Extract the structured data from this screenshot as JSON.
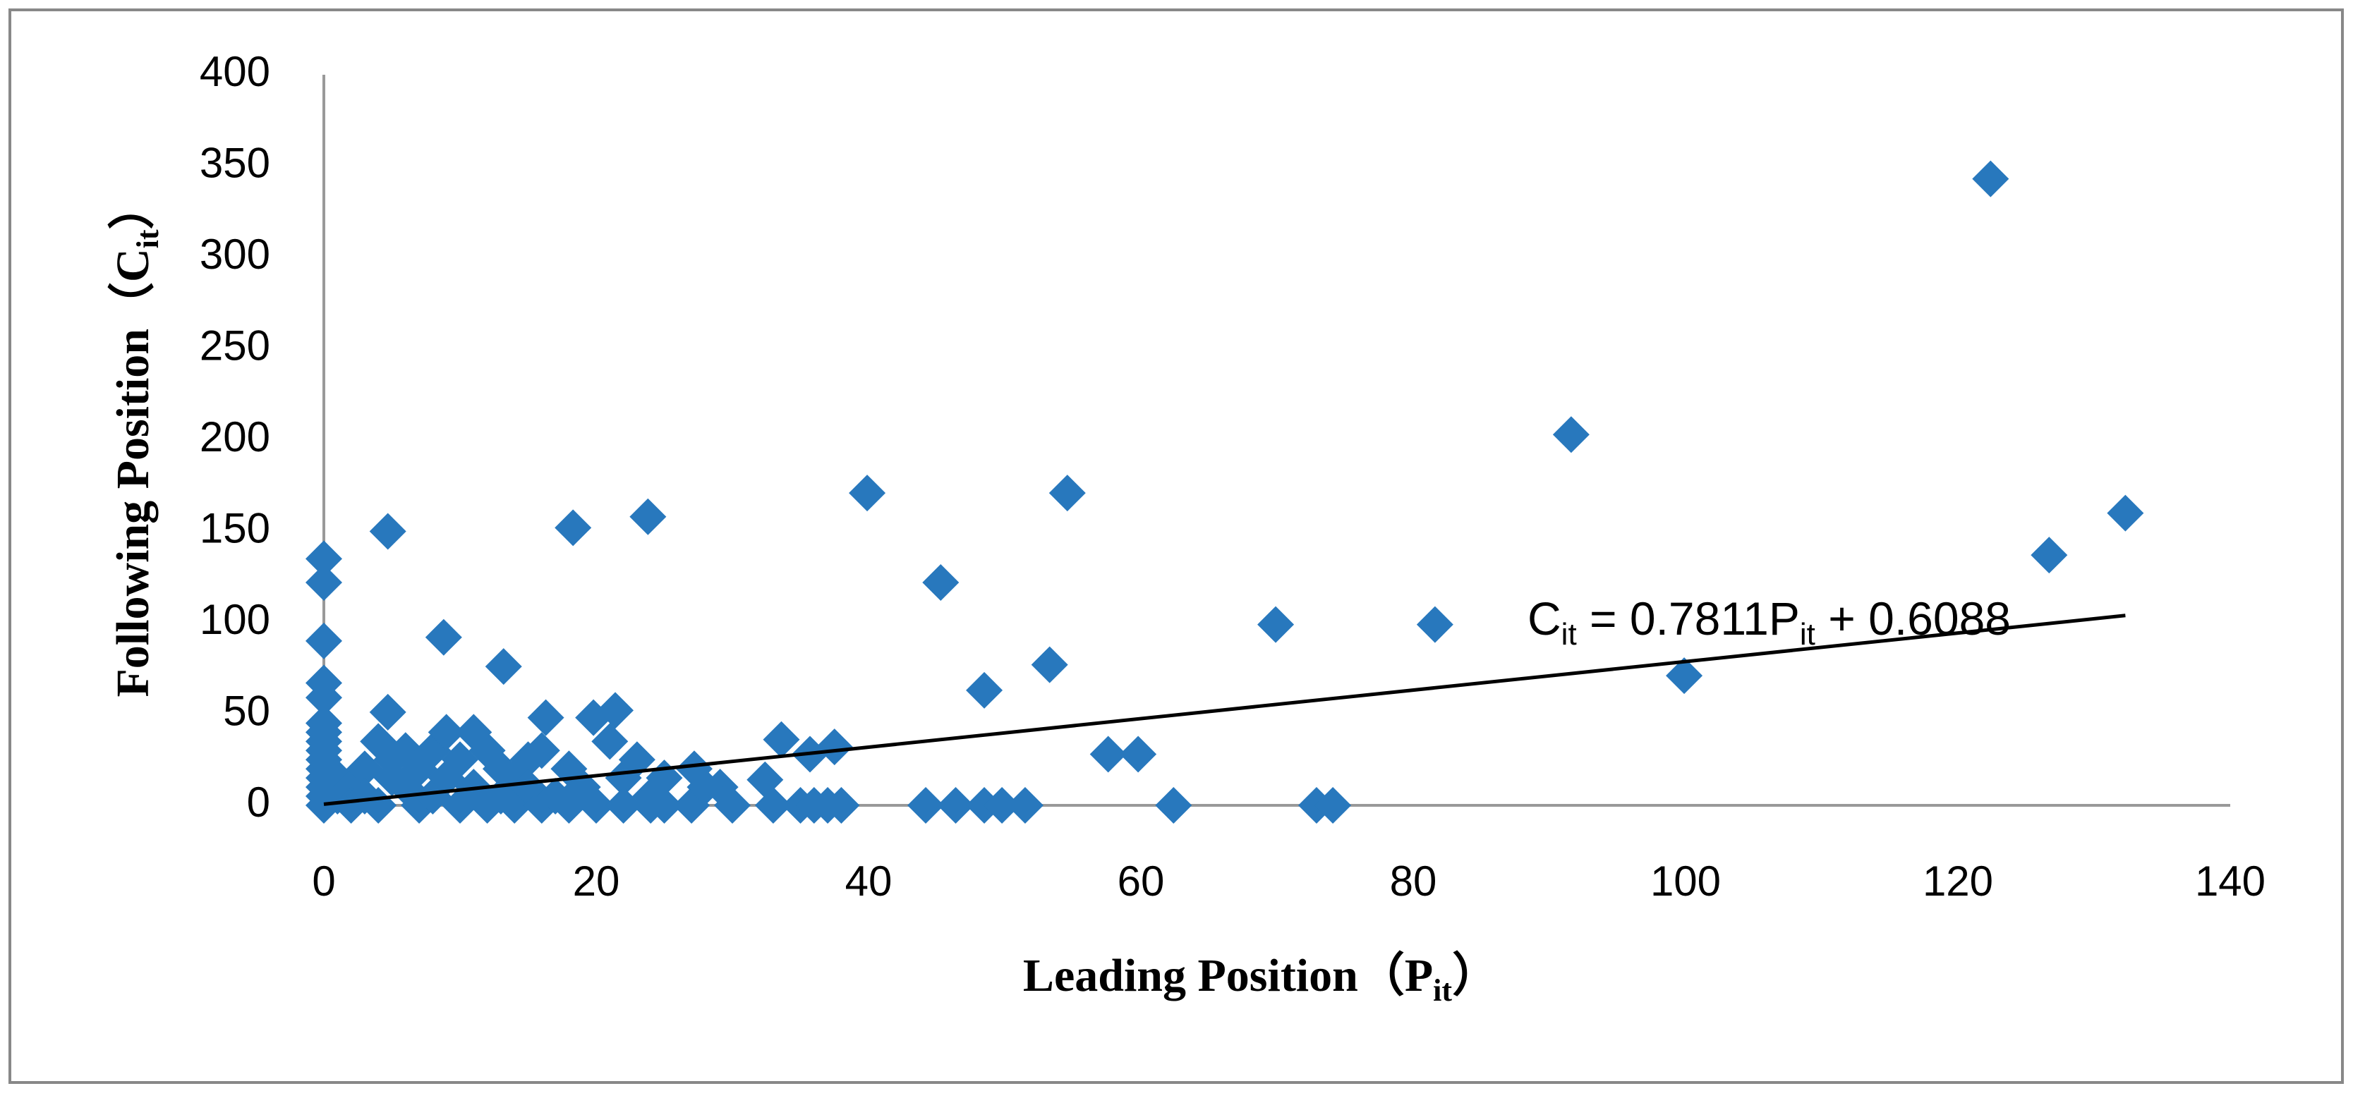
{
  "chart_data": {
    "type": "scatter",
    "x_label_parts": [
      "Leading Position（P",
      "it",
      "）"
    ],
    "y_label_parts": [
      "Following Position（C",
      "it",
      "）"
    ],
    "equation_parts": [
      "C",
      "it",
      " = 0.7811P",
      "it",
      " + 0.6088"
    ],
    "xlim": [
      0,
      140
    ],
    "xticks": [
      0,
      20,
      40,
      60,
      80,
      100,
      120,
      140
    ],
    "ylim": [
      0,
      400
    ],
    "yticks": [
      0,
      50,
      100,
      150,
      200,
      250,
      300,
      350,
      400
    ],
    "series": [
      {
        "color": "#2878bd",
        "x": [
          122.4,
          91.6,
          132.3,
          126.7,
          99.9,
          81.6,
          69.9,
          54.6,
          39.9,
          45.3,
          48.5,
          53.3,
          57.6,
          59.8,
          62.4,
          72.9,
          74.1,
          44.2,
          46.4,
          48.5,
          49.8,
          51.5,
          23.8,
          18.3,
          4.7,
          0,
          0,
          0,
          8.8,
          13.2,
          0,
          0,
          4.7,
          16.3,
          21.4,
          19.8,
          33.6,
          37.5,
          35.7,
          27.2,
          32.4,
          29.1,
          0,
          0,
          0,
          0,
          0,
          0,
          0,
          0,
          0,
          0,
          1,
          1,
          2,
          2,
          3,
          3,
          4,
          4,
          5,
          5,
          6,
          6,
          7,
          7,
          8,
          8,
          9,
          9,
          10,
          10,
          11,
          11,
          12,
          12,
          13,
          13,
          14,
          14,
          15,
          15,
          16,
          16,
          17,
          18,
          18,
          19,
          20,
          21,
          22,
          22,
          23,
          24,
          24,
          25,
          25,
          27,
          28,
          30,
          33,
          35,
          36,
          37,
          38
        ],
        "values": [
          343,
          203,
          160,
          137,
          71,
          99,
          99,
          171,
          171,
          122,
          63,
          77,
          28,
          28,
          0,
          0,
          0,
          0,
          0,
          0,
          0,
          0,
          158,
          152,
          150,
          135,
          122,
          90,
          92,
          76,
          67,
          59,
          51,
          48,
          52,
          48,
          36,
          32,
          28,
          20,
          14,
          10,
          0,
          5,
          10,
          15,
          20,
          25,
          30,
          35,
          40,
          45,
          5,
          15,
          10,
          0,
          20,
          5,
          35,
          0,
          15,
          25,
          10,
          30,
          0,
          20,
          5,
          30,
          40,
          15,
          0,
          25,
          40,
          10,
          30,
          0,
          20,
          5,
          15,
          0,
          25,
          10,
          30,
          0,
          5,
          20,
          0,
          10,
          0,
          35,
          15,
          0,
          25,
          5,
          0,
          15,
          0,
          0,
          10,
          0,
          0,
          0,
          0,
          0,
          0
        ]
      }
    ],
    "trendline": {
      "color": "#000000",
      "x": [
        0,
        132.3
      ],
      "values": [
        0.61,
        103.95
      ]
    }
  }
}
